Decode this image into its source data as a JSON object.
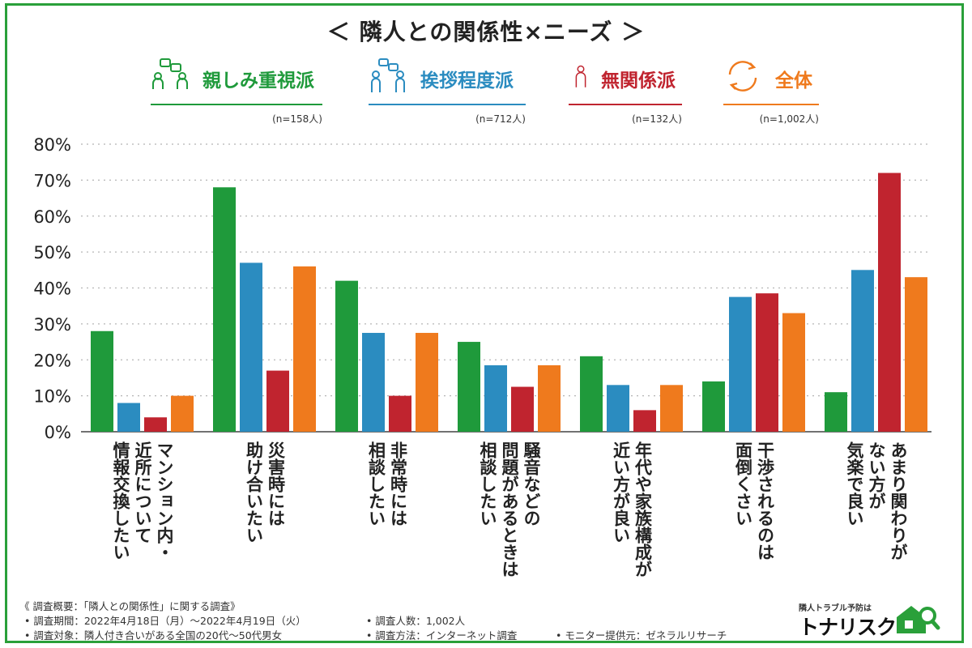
{
  "title": "＜ 隣人との関係性×ニーズ ＞",
  "legend": [
    {
      "label": "親しみ重視派",
      "n": "(n=158人)",
      "color": "#1f9a3b",
      "icon": "conversation-people-icon"
    },
    {
      "label": "挨拶程度派",
      "n": "(n=712人)",
      "color": "#2b8cc0",
      "icon": "greeting-people-icon"
    },
    {
      "label": "無関係派",
      "n": "(n=132人)",
      "color": "#c0242f",
      "icon": "single-person-icon"
    },
    {
      "label": "全体",
      "n": "(n=1,002人)",
      "color": "#ef7a1d",
      "icon": "circular-arrows-icon"
    }
  ],
  "chart_data": {
    "type": "bar",
    "title": "＜ 隣人との関係性×ニーズ ＞",
    "categories": [
      "マンション内・\n近所について\n情報交換したい",
      "災害時には\n助け合いたい",
      "非常時には\n相談したい",
      "騒音などの\n問題があるときは\n相談したい",
      "年代や家族構成が\n近い方が良い",
      "干渉されるのは\n面倒くさい",
      "あまり関わりが\nない方が\n気楽で良い"
    ],
    "series": [
      {
        "name": "親しみ重視派",
        "color": "#1f9a3b",
        "values": [
          28,
          68,
          42,
          25,
          21,
          14,
          11
        ]
      },
      {
        "name": "挨拶程度派",
        "color": "#2b8cc0",
        "values": [
          8,
          47,
          27.5,
          18.5,
          13,
          37.5,
          45
        ]
      },
      {
        "name": "無関係派",
        "color": "#c0242f",
        "values": [
          4,
          17,
          10,
          12.5,
          6,
          38.5,
          72
        ]
      },
      {
        "name": "全体",
        "color": "#ef7a1d",
        "values": [
          10,
          46,
          27.5,
          18.5,
          13,
          33,
          43
        ]
      }
    ],
    "ylim": [
      0,
      80
    ],
    "yticks": [
      "0%",
      "10%",
      "20%",
      "30%",
      "40%",
      "50%",
      "60%",
      "70%",
      "80%"
    ],
    "grid": true,
    "legend_position": "top"
  },
  "footer": {
    "line1": "《 調査概要：「隣人との関係性」に関する調査》",
    "period": "• 調査期間：2022年4月18日（月）～2022年4月19日（火）",
    "target": "• 調査対象：隣人付き合いがある全国の20代～50代男女",
    "count": "• 調査人数：1,002人",
    "method": "• 調査方法：インターネット調査",
    "monitor": "• モニター提供元：ゼネラルリサーチ"
  },
  "brand": {
    "tagline": "隣人トラブル予防は",
    "name": "トナリスク"
  }
}
